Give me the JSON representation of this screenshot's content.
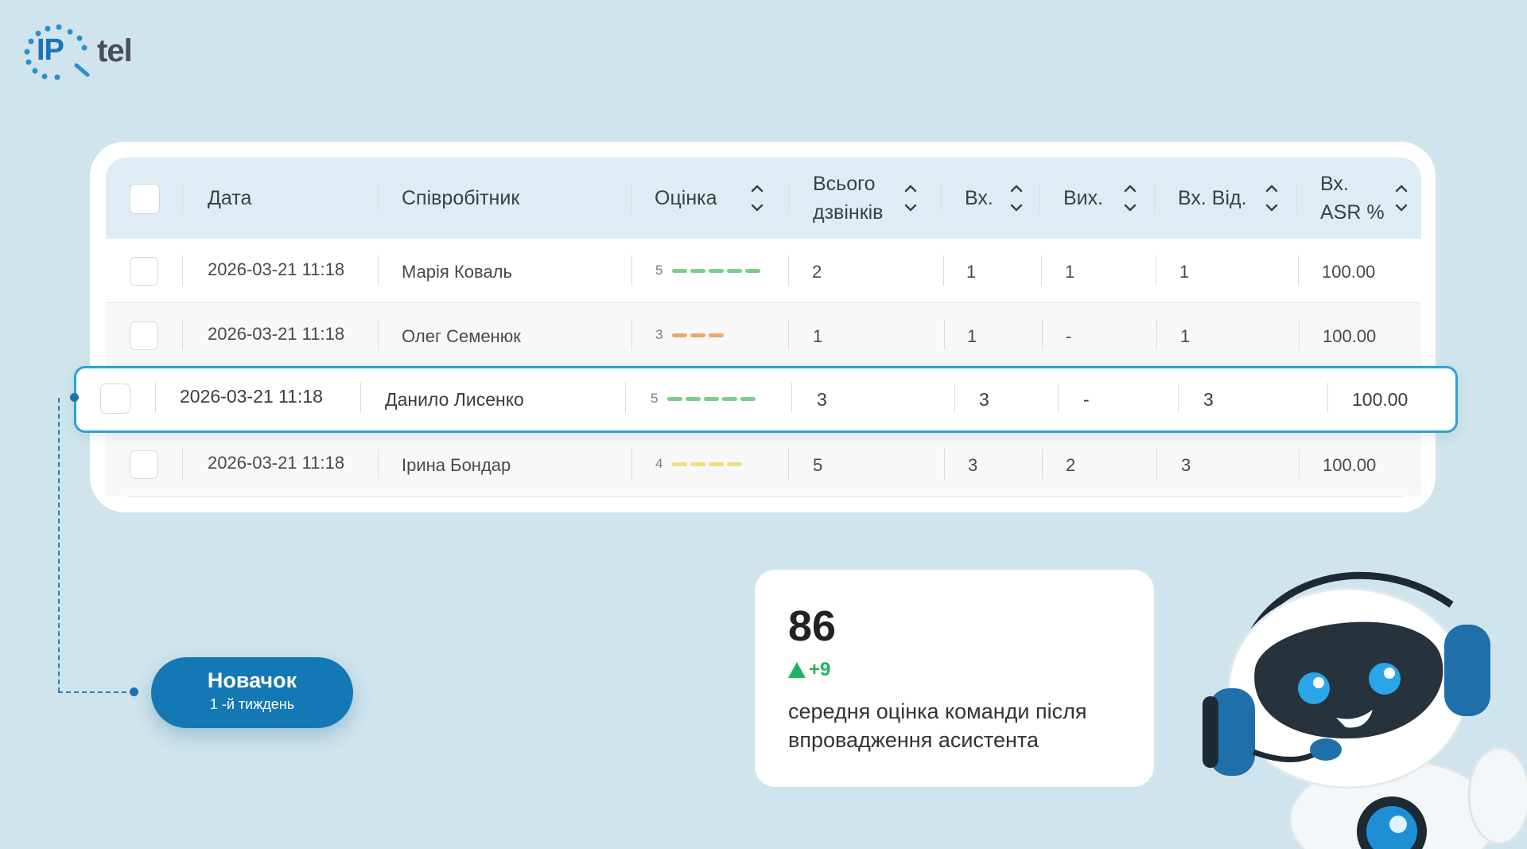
{
  "brand": {
    "ip": "IP",
    "word": "tel"
  },
  "table": {
    "headers": {
      "date": "Дата",
      "employee": "Співробітник",
      "score": "Оцінка",
      "total_line1": "Всього",
      "total_line2": "дзвінків",
      "incoming": "Вх.",
      "outgoing": "Вих.",
      "incoming_answered": "Вх. Від.",
      "asr_line1": "Вх.",
      "asr_line2": "ASR %"
    },
    "rows": [
      {
        "date": "2026-03-21 11:18",
        "employee": "Марія Коваль",
        "score": "5",
        "total": "2",
        "incoming": "1",
        "outgoing": "1",
        "incoming_answered": "1",
        "asr": "100.00"
      },
      {
        "date": "2026-03-21 11:18",
        "employee": "Олег Семенюк",
        "score": "3",
        "total": "1",
        "incoming": "1",
        "outgoing": "-",
        "incoming_answered": "1",
        "asr": "100.00"
      },
      {
        "date": "2026-03-21 11:18",
        "employee": "Данило Лисенко",
        "score": "5",
        "total": "3",
        "incoming": "3",
        "outgoing": "-",
        "incoming_answered": "3",
        "asr": "100.00"
      },
      {
        "date": "2026-03-21 11:18",
        "employee": "Ірина Бондар",
        "score": "4",
        "total": "5",
        "incoming": "3",
        "outgoing": "2",
        "incoming_answered": "3",
        "asr": "100.00"
      }
    ],
    "score_colors": {
      "5": "#7fcc88",
      "4": "#efdf78",
      "3": "#eba869"
    }
  },
  "badge": {
    "title": "Новачок",
    "subtitle": "1 -й тиждень"
  },
  "stat": {
    "value": "86",
    "delta": "+9",
    "description": "середня оцінка команди після впровадження асистента"
  }
}
